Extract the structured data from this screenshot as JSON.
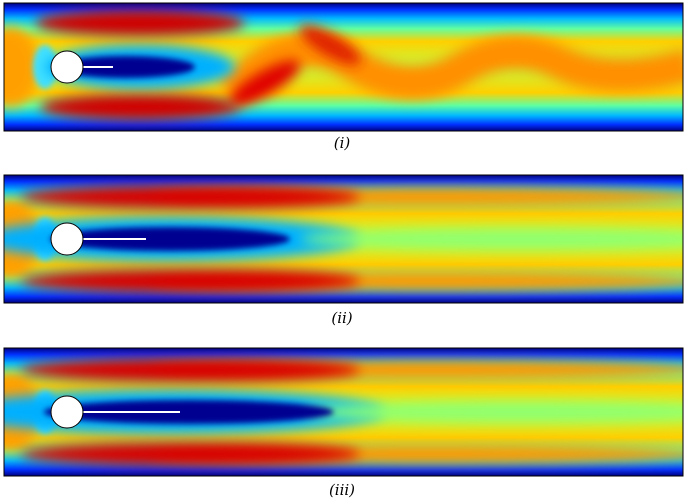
{
  "panels": [
    {
      "caption": "(i)"
    },
    {
      "caption": "(ii)"
    },
    {
      "caption": "(iii)"
    }
  ]
}
